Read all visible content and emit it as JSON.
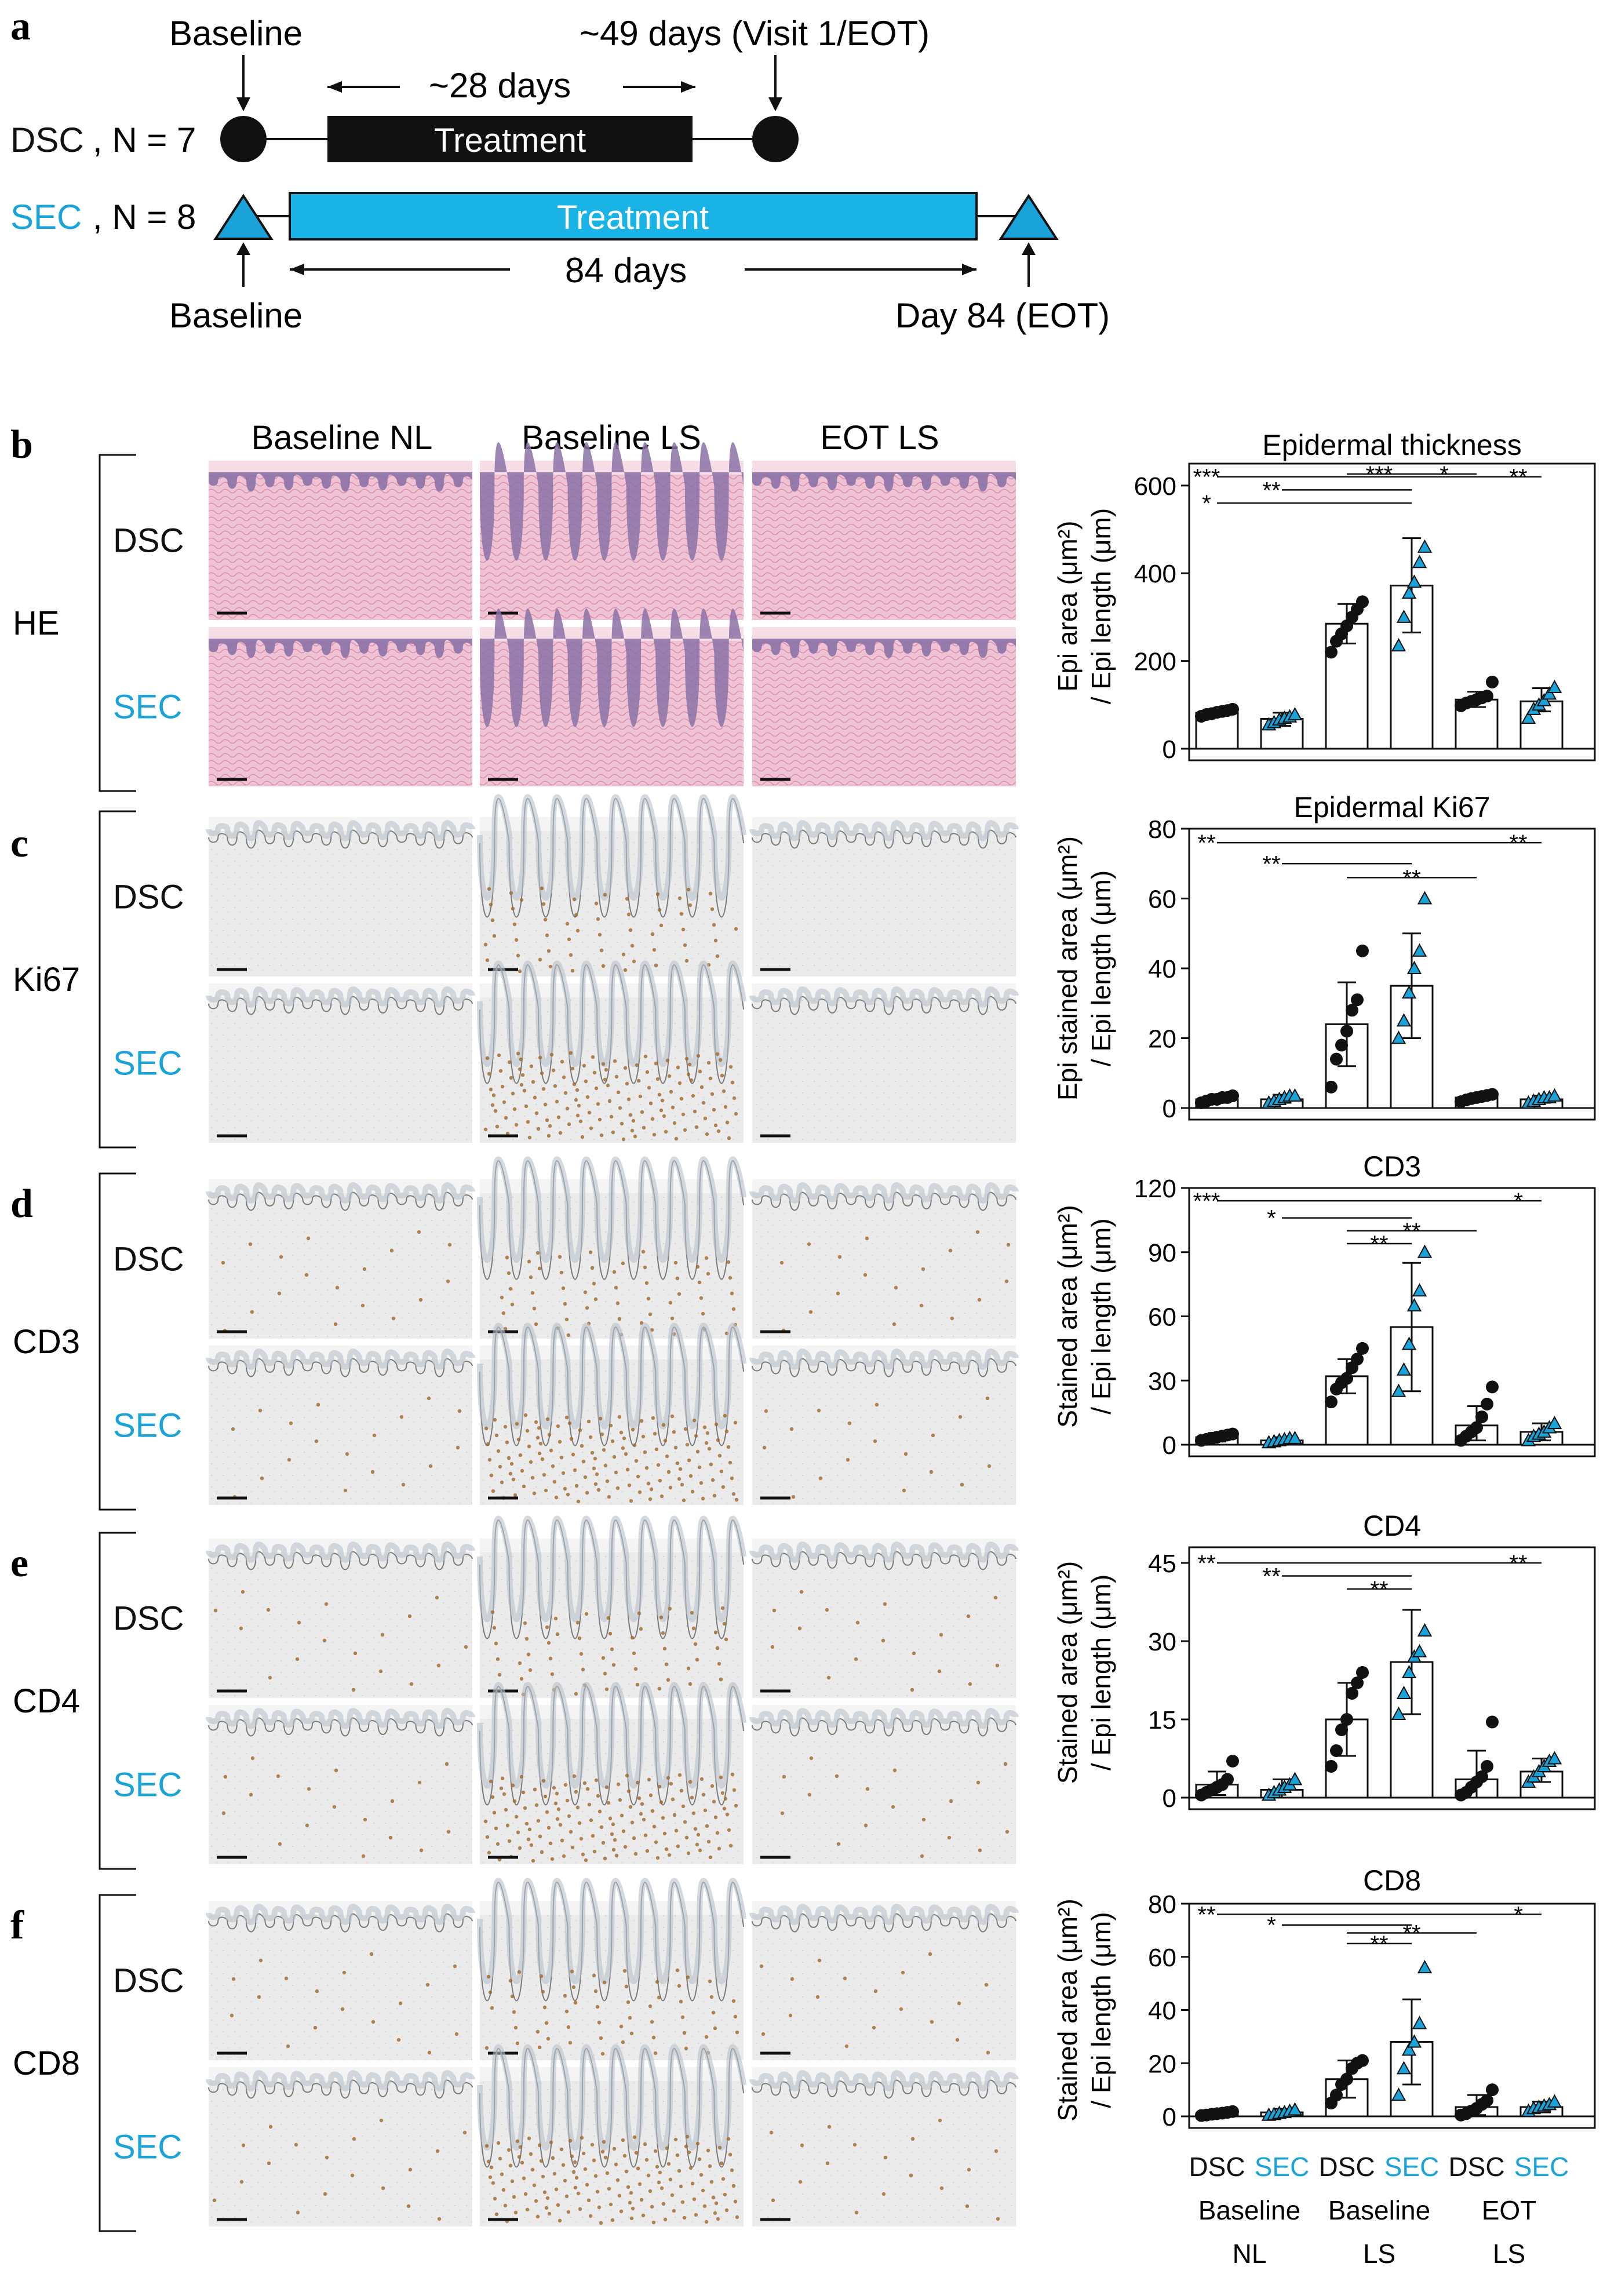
{
  "panel_letters": [
    "a",
    "b",
    "c",
    "d",
    "e",
    "f"
  ],
  "colors": {
    "dsc": "#111111",
    "sec": "#1aa3d9",
    "sec_bar": "#1ab3e6",
    "he_pink": "#e8b8cc",
    "he_purple": "#8b72a6",
    "ihc_bg": "#ececec",
    "ihc_line": "#777777",
    "brown": "#a0662b"
  },
  "timeline": {
    "dsc_label": "DSC",
    "sec_label": "SEC",
    "dsc_n": ", N = 7",
    "sec_n": ", N = 8",
    "baseline_top": "Baseline",
    "baseline_bottom": "Baseline",
    "dsc_end": "~49 days (Visit 1/EOT)",
    "dsc_duration": "~28 days",
    "sec_duration": "84 days",
    "sec_end": "Day 84 (EOT)",
    "treatment_dsc": "Treatment",
    "treatment_sec": "Treatment"
  },
  "micro": {
    "columns": [
      "Baseline NL",
      "Baseline LS",
      "EOT LS"
    ],
    "row_groups": [
      {
        "stain": "HE",
        "rows": [
          "DSC",
          "SEC"
        ]
      },
      {
        "stain": "Ki67",
        "rows": [
          "DSC",
          "SEC"
        ]
      },
      {
        "stain": "CD3",
        "rows": [
          "DSC",
          "SEC"
        ]
      },
      {
        "stain": "CD4",
        "rows": [
          "DSC",
          "SEC"
        ]
      },
      {
        "stain": "CD8",
        "rows": [
          "DSC",
          "SEC"
        ]
      }
    ]
  },
  "x_groups": {
    "top": [
      "DSC",
      "SEC",
      "DSC",
      "SEC",
      "DSC",
      "SEC"
    ],
    "mid": [
      "Baseline",
      "Baseline",
      "EOT"
    ],
    "bottom": [
      "NL",
      "LS",
      "LS"
    ]
  },
  "chart_data": [
    {
      "type": "bar",
      "title": "Epidermal thickness",
      "ylabel": [
        "Epi area (μm²)",
        "/ Epi length (μm)"
      ],
      "ylim": [
        0,
        650
      ],
      "ticks": [
        0,
        200,
        400,
        600
      ],
      "means": [
        82,
        68,
        285,
        372,
        112,
        108
      ],
      "sd": [
        [
          76,
          88
        ],
        [
          52,
          82
        ],
        [
          240,
          330
        ],
        [
          265,
          480
        ],
        [
          95,
          130
        ],
        [
          85,
          138
        ]
      ],
      "points": [
        [
          74,
          78,
          80,
          83,
          85,
          87,
          90
        ],
        [
          55,
          60,
          66,
          70,
          73,
          78
        ],
        [
          220,
          245,
          262,
          280,
          300,
          318,
          335
        ],
        [
          235,
          300,
          355,
          380,
          425,
          460
        ],
        [
          98,
          104,
          108,
          112,
          116,
          120,
          152
        ],
        [
          70,
          90,
          100,
          110,
          125,
          140
        ]
      ],
      "sig": [
        {
          "a": 2,
          "b": 3,
          "mark": "***",
          "y": 675
        },
        {
          "a": 0,
          "b": 4,
          "mark": "***",
          "y": 620
        },
        {
          "a": 3,
          "b": 5,
          "mark": "**",
          "y": 620
        },
        {
          "a": 3,
          "b": 4,
          "mark": "*",
          "y": 650
        },
        {
          "a": 1,
          "b": 3,
          "mark": "**",
          "y": 590
        },
        {
          "a": 0,
          "b": 3,
          "mark": "*",
          "y": 560
        }
      ]
    },
    {
      "type": "bar",
      "title": "Epidermal Ki67",
      "ylabel": [
        "Epi stained area (μm²)",
        "/ Epi length (μm)"
      ],
      "ylim": [
        0,
        80
      ],
      "ticks": [
        0,
        20,
        40,
        60,
        80
      ],
      "means": [
        2.5,
        2.5,
        24,
        35,
        3,
        2.5
      ],
      "sd": [
        [
          1.5,
          3.5
        ],
        [
          1.5,
          3.8
        ],
        [
          12,
          36
        ],
        [
          20,
          50
        ],
        [
          2,
          4
        ],
        [
          1.5,
          3.5
        ]
      ],
      "points": [
        [
          1.5,
          2,
          2.5,
          2.5,
          3,
          3,
          3.5
        ],
        [
          1.5,
          2,
          2.5,
          3,
          3.5,
          3.5
        ],
        [
          6,
          14,
          18,
          22,
          28,
          31,
          45
        ],
        [
          20,
          25,
          33,
          40,
          45,
          60
        ],
        [
          1.8,
          2.3,
          2.7,
          3,
          3.3,
          3.6,
          3.9
        ],
        [
          1.5,
          2,
          2.5,
          3,
          3,
          3.5
        ]
      ],
      "sig": [
        {
          "a": 0,
          "b": 3,
          "mark": "**",
          "y": 76
        },
        {
          "a": 3,
          "b": 5,
          "mark": "**",
          "y": 76
        },
        {
          "a": 1,
          "b": 3,
          "mark": "**",
          "y": 70
        },
        {
          "a": 2,
          "b": 4,
          "mark": "**",
          "y": 66
        }
      ]
    },
    {
      "type": "bar",
      "title": "CD3",
      "ylabel": [
        "Stained area (μm²)",
        "/ Epi length (μm)"
      ],
      "ylim": [
        0,
        120
      ],
      "ticks": [
        0,
        30,
        60,
        90,
        120
      ],
      "means": [
        3.5,
        2,
        32,
        55,
        9,
        6
      ],
      "sd": [
        [
          1.5,
          5.5
        ],
        [
          0.5,
          3.5
        ],
        [
          24,
          40
        ],
        [
          25,
          85
        ],
        [
          2,
          18
        ],
        [
          2,
          10
        ]
      ],
      "points": [
        [
          2,
          2.5,
          3,
          3.5,
          4,
          4.5,
          5
        ],
        [
          1,
          1.5,
          2,
          2.5,
          3,
          3
        ],
        [
          20,
          26,
          29,
          31,
          36,
          40,
          45
        ],
        [
          25,
          35,
          47,
          65,
          72,
          90
        ],
        [
          2,
          4,
          6,
          8,
          13,
          19,
          27
        ],
        [
          2,
          4,
          5,
          6,
          8,
          10
        ]
      ],
      "sig": [
        {
          "a": 0,
          "b": 3,
          "mark": "***",
          "y": 114
        },
        {
          "a": 3,
          "b": 5,
          "mark": "*",
          "y": 114
        },
        {
          "a": 1,
          "b": 3,
          "mark": "*",
          "y": 106
        },
        {
          "a": 2,
          "b": 4,
          "mark": "**",
          "y": 100
        },
        {
          "a": 2,
          "b": 3,
          "mark": "**",
          "y": 94
        }
      ]
    },
    {
      "type": "bar",
      "title": "CD4",
      "ylabel": [
        "Stained area (μm²)",
        "/ Epi length (μm)"
      ],
      "ylim": [
        0,
        48
      ],
      "ticks": [
        0,
        15,
        30,
        45
      ],
      "means": [
        2.5,
        1.5,
        15,
        26,
        3.5,
        5
      ],
      "sd": [
        [
          0.5,
          5
        ],
        [
          0,
          3.5
        ],
        [
          8,
          22
        ],
        [
          16,
          36
        ],
        [
          0,
          9
        ],
        [
          3,
          7.5
        ]
      ],
      "points": [
        [
          0.5,
          1,
          1.5,
          2,
          2.5,
          3.5,
          7
        ],
        [
          0.5,
          1,
          1.5,
          2,
          2.5,
          3.5
        ],
        [
          6,
          9,
          13,
          15,
          20,
          22,
          24
        ],
        [
          16,
          20,
          24,
          27,
          28,
          32
        ],
        [
          0.5,
          1,
          2,
          3,
          4,
          6,
          14.5
        ],
        [
          3,
          4,
          5,
          6,
          7,
          7.5
        ]
      ],
      "sig": [
        {
          "a": 0,
          "b": 3,
          "mark": "**",
          "y": 45
        },
        {
          "a": 3,
          "b": 5,
          "mark": "**",
          "y": 45
        },
        {
          "a": 1,
          "b": 3,
          "mark": "**",
          "y": 42.5
        },
        {
          "a": 2,
          "b": 3,
          "mark": "**",
          "y": 40
        }
      ]
    },
    {
      "type": "bar",
      "title": "CD8",
      "ylabel": [
        "Stained area (μm²)",
        "/ Epi length (μm)"
      ],
      "ylim": [
        0,
        80
      ],
      "ticks": [
        0,
        20,
        40,
        60,
        80
      ],
      "means": [
        1,
        1.5,
        14,
        28,
        3.5,
        3.5
      ],
      "sd": [
        [
          0.3,
          1.8
        ],
        [
          0.3,
          2.8
        ],
        [
          7,
          21
        ],
        [
          12,
          44
        ],
        [
          0.5,
          8
        ],
        [
          1.5,
          5.5
        ]
      ],
      "points": [
        [
          0.3,
          0.5,
          0.8,
          1,
          1.2,
          1.5,
          1.8
        ],
        [
          0.5,
          0.8,
          1.2,
          1.5,
          2,
          2.5
        ],
        [
          5,
          8,
          12,
          14,
          18,
          20,
          21
        ],
        [
          8,
          18,
          25,
          28,
          35,
          56
        ],
        [
          0.5,
          1,
          2,
          3,
          4.5,
          6,
          10
        ],
        [
          2,
          3,
          3.5,
          4,
          4.5,
          5.5
        ]
      ],
      "sig": [
        {
          "a": 0,
          "b": 3,
          "mark": "**",
          "y": 76
        },
        {
          "a": 3,
          "b": 5,
          "mark": "*",
          "y": 76
        },
        {
          "a": 1,
          "b": 3,
          "mark": "*",
          "y": 72
        },
        {
          "a": 2,
          "b": 4,
          "mark": "**",
          "y": 69
        },
        {
          "a": 2,
          "b": 3,
          "mark": "**",
          "y": 65
        }
      ]
    }
  ]
}
